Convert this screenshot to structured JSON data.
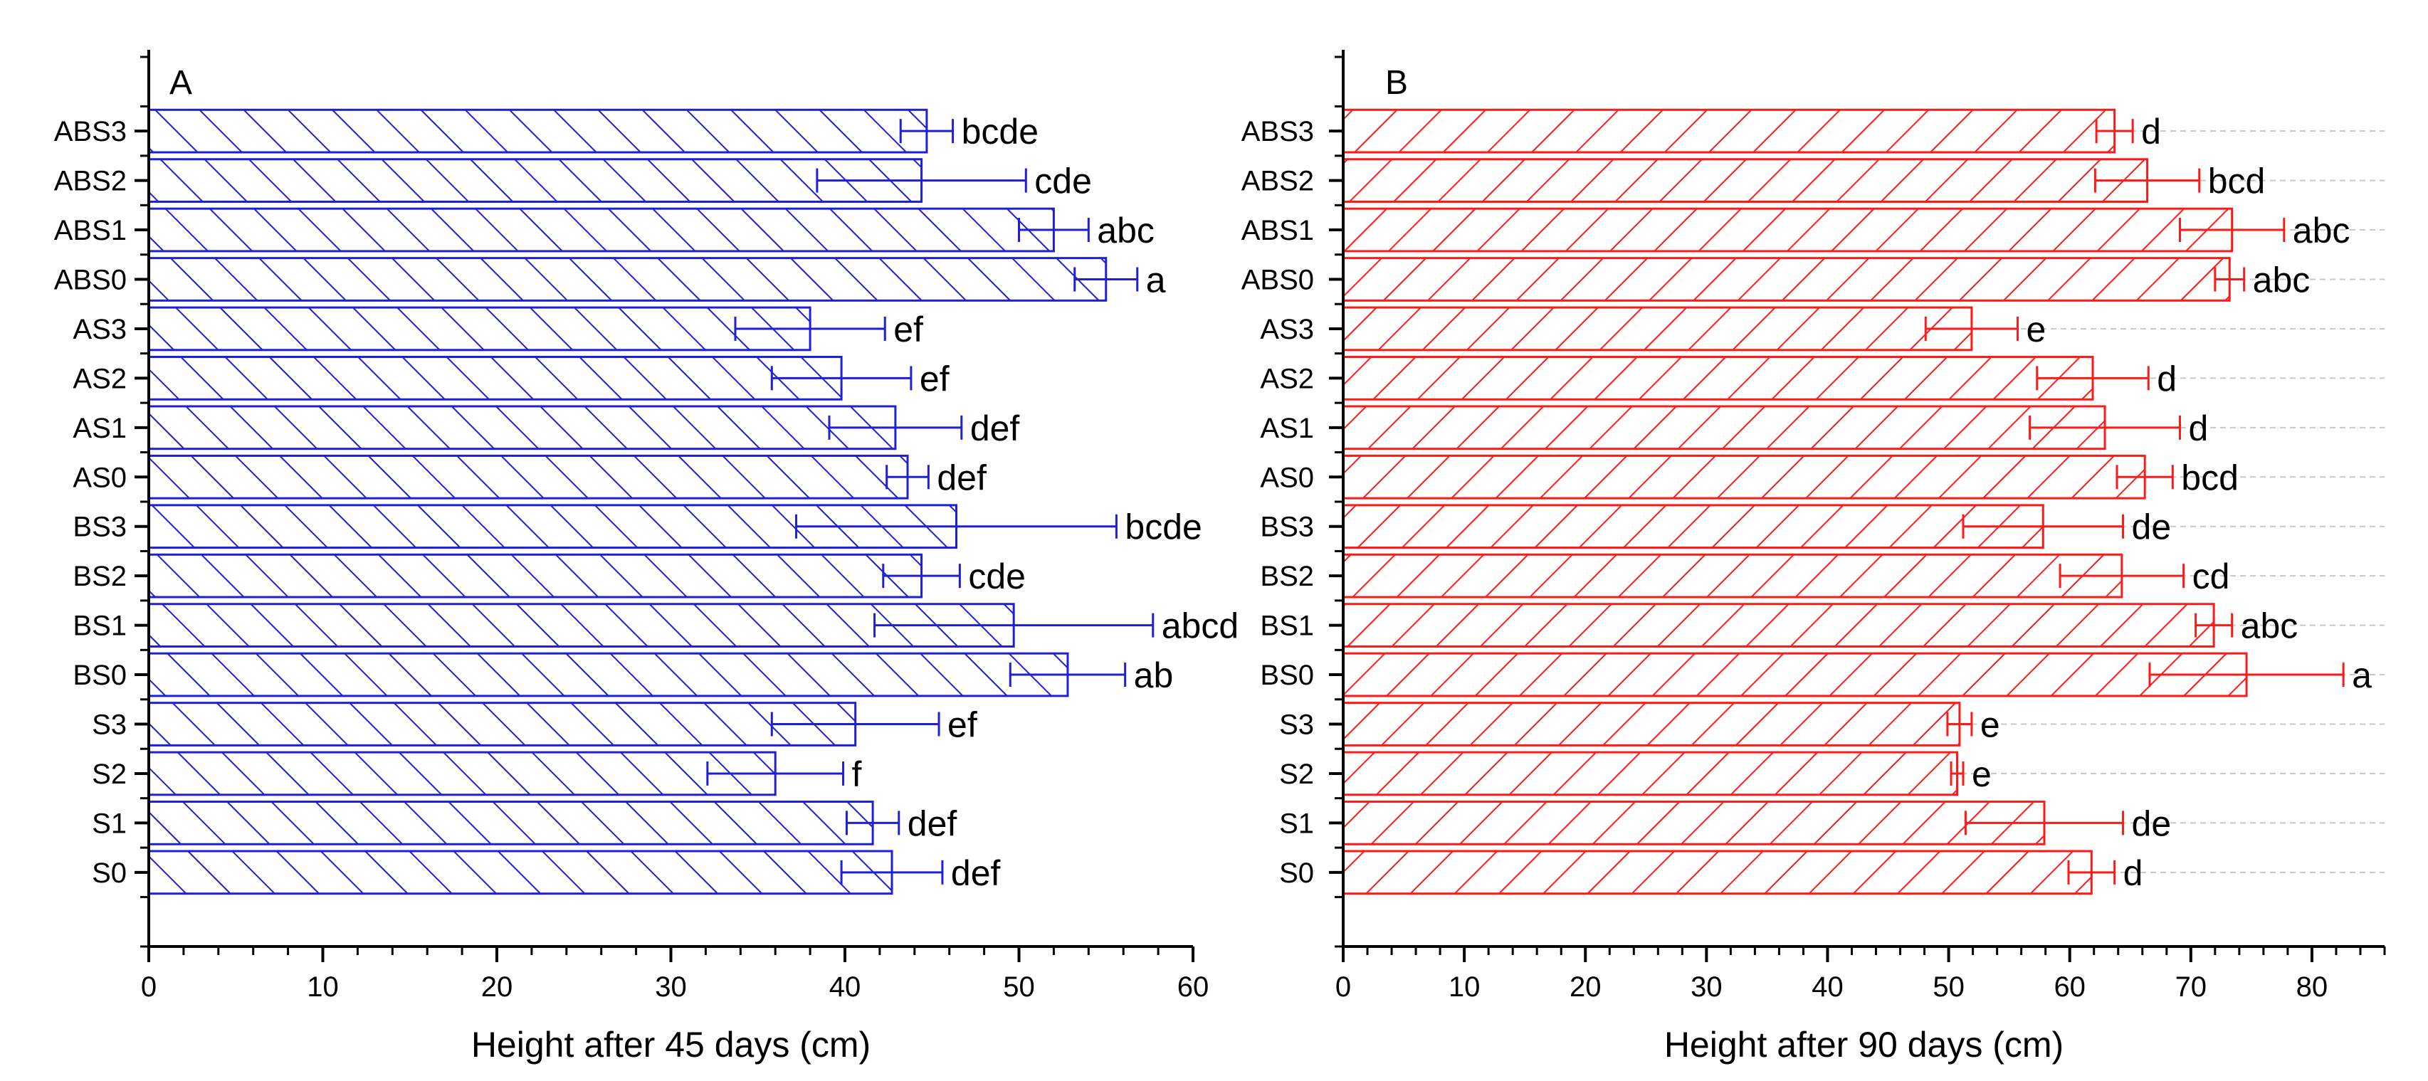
{
  "chart_data": [
    {
      "type": "bar",
      "orientation": "horizontal",
      "panel_label": "A",
      "xlabel": "Height after 45 days (cm)",
      "xlim": [
        0,
        60
      ],
      "xticks": [
        0,
        10,
        20,
        30,
        40,
        50,
        60
      ],
      "color": "#1f1fd6",
      "hatch": "backslash",
      "categories": [
        "ABS3",
        "ABS2",
        "ABS1",
        "ABS0",
        "AS3",
        "AS2",
        "AS1",
        "AS0",
        "BS3",
        "BS2",
        "BS1",
        "BS0",
        "S3",
        "S2",
        "S1",
        "S0"
      ],
      "values": [
        44.7,
        44.4,
        52.0,
        55.0,
        38.0,
        39.8,
        42.9,
        43.6,
        46.4,
        44.4,
        49.7,
        52.8,
        40.6,
        36.0,
        41.6,
        42.7
      ],
      "errors": [
        1.5,
        6.0,
        2.0,
        1.8,
        4.3,
        4.0,
        3.8,
        1.2,
        9.2,
        2.2,
        8.0,
        3.3,
        4.8,
        3.9,
        1.5,
        2.9
      ],
      "letters": [
        "bcde",
        "cde",
        "abc",
        "a",
        "ef",
        "ef",
        "def",
        "def",
        "bcde",
        "cde",
        "abcd",
        "ab",
        "ef",
        "f",
        "def",
        "def"
      ]
    },
    {
      "type": "bar",
      "orientation": "horizontal",
      "panel_label": "B",
      "xlabel": "Height after 90 days (cm)",
      "xlim": [
        0,
        86
      ],
      "xticks": [
        0,
        10,
        20,
        30,
        40,
        50,
        60,
        70,
        80
      ],
      "color": "#ff1a1a",
      "hatch": "slash",
      "categories": [
        "ABS3",
        "ABS2",
        "ABS1",
        "ABS0",
        "AS3",
        "AS2",
        "AS1",
        "AS0",
        "BS3",
        "BS2",
        "BS1",
        "BS0",
        "S3",
        "S2",
        "S1",
        "S0"
      ],
      "values": [
        63.7,
        66.4,
        73.4,
        73.2,
        51.9,
        61.9,
        62.9,
        66.2,
        57.8,
        64.3,
        71.9,
        74.6,
        50.9,
        50.7,
        57.9,
        61.8
      ],
      "errors": [
        1.5,
        4.3,
        4.3,
        1.2,
        3.8,
        4.6,
        6.2,
        2.3,
        6.6,
        5.1,
        1.5,
        8.0,
        1.0,
        0.5,
        6.5,
        1.9
      ],
      "letters": [
        "d",
        "bcd",
        "abc",
        "abc",
        "e",
        "d",
        "d",
        "bcd",
        "de",
        "cd",
        "abc",
        "a",
        "e",
        "e",
        "de",
        "d"
      ]
    }
  ]
}
